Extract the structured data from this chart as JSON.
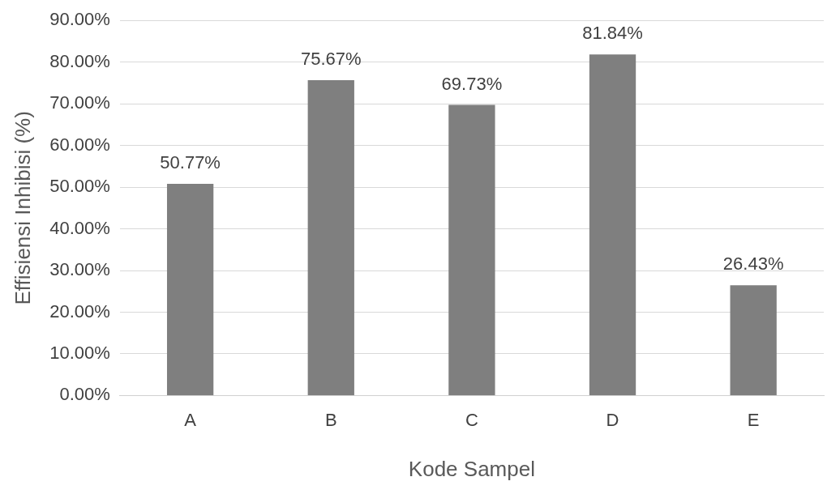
{
  "chart_data": {
    "type": "bar",
    "xlabel": "Kode Sampel",
    "ylabel": "Effisiensi Inhibisi (%)",
    "categories": [
      "A",
      "B",
      "C",
      "D",
      "E"
    ],
    "values": [
      50.77,
      75.67,
      69.73,
      81.84,
      26.43
    ],
    "value_labels": [
      "50.77%",
      "75.67%",
      "69.73%",
      "81.84%",
      "26.43%"
    ],
    "color": "#7f7f7f",
    "ylim": [
      0,
      90
    ],
    "yticks": [
      {
        "value": 0,
        "label": "0.00%"
      },
      {
        "value": 10,
        "label": "10.00%"
      },
      {
        "value": 20,
        "label": "20.00%"
      },
      {
        "value": 30,
        "label": "30.00%"
      },
      {
        "value": 40,
        "label": "40.00%"
      },
      {
        "value": 50,
        "label": "50.00%"
      },
      {
        "value": 60,
        "label": "60.00%"
      },
      {
        "value": 70,
        "label": "70.00%"
      },
      {
        "value": 80,
        "label": "80.00%"
      },
      {
        "value": 90,
        "label": "90.00%"
      }
    ],
    "grid": "y",
    "legend": false
  }
}
